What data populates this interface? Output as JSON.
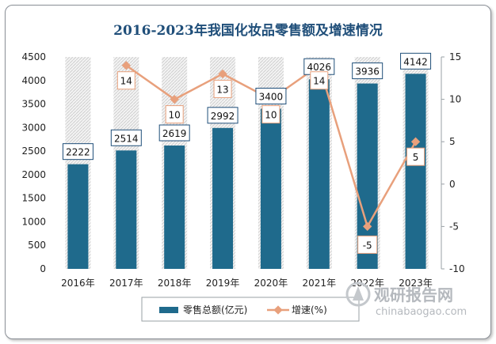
{
  "chart_data": {
    "type": "bar+line",
    "title": "2016-2023年我国化妆品零售额及增速情况",
    "categories": [
      "2016年",
      "2017年",
      "2018年",
      "2019年",
      "2020年",
      "2021年",
      "2022年",
      "2023年"
    ],
    "series": [
      {
        "name": "零售总额(亿元)",
        "type": "bar",
        "axis": "left",
        "color": "#1f6a8c",
        "values": [
          2222,
          2514,
          2619,
          2992,
          3400,
          4026,
          3936,
          4142
        ]
      },
      {
        "name": "增速(%)",
        "type": "line",
        "axis": "right",
        "color": "#e8a07c",
        "values": [
          null,
          14,
          10,
          13,
          10,
          14,
          -5,
          5
        ]
      }
    ],
    "y_left": {
      "min": 0,
      "max": 4500,
      "ticks": [
        0,
        500,
        1000,
        1500,
        2000,
        2500,
        3000,
        3500,
        4000,
        4500
      ]
    },
    "y_right": {
      "min": -10,
      "max": 15,
      "ticks": [
        -10,
        -5,
        0,
        5,
        10,
        15
      ]
    },
    "grid": false,
    "legend": "bottom-center"
  },
  "watermark": {
    "main": "观研报告网",
    "url": "chinabaogao.com"
  }
}
